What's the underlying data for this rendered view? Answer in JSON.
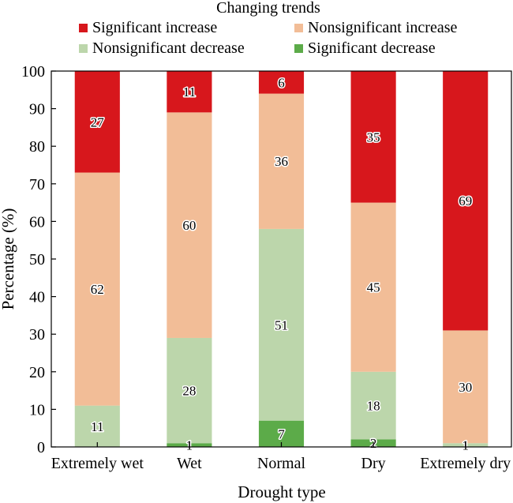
{
  "chart_data": {
    "type": "bar",
    "stacked": true,
    "title": "",
    "xlabel": "Drought type",
    "ylabel": "Percentage (%)",
    "ylim": [
      0,
      100
    ],
    "yticks": [
      0,
      10,
      20,
      30,
      40,
      50,
      60,
      70,
      80,
      90,
      100
    ],
    "categories": [
      "Extremely wet",
      "Wet",
      "Normal",
      "Dry",
      "Extremely dry"
    ],
    "legend": {
      "title": "Changing trends",
      "placement": "top"
    },
    "series": [
      {
        "name": "Significant decrease",
        "color": "#5cab49",
        "values": [
          0,
          1,
          7,
          2,
          0
        ],
        "labels": [
          "",
          "1",
          "7",
          "2",
          ""
        ]
      },
      {
        "name": "Nonsignificant decrease",
        "color": "#bcd6ab",
        "values": [
          11,
          28,
          51,
          18,
          1
        ],
        "labels": [
          "11",
          "28",
          "51",
          "18",
          "1"
        ]
      },
      {
        "name": "Nonsignificant increase",
        "color": "#f2bd97",
        "values": [
          62,
          60,
          36,
          45,
          30
        ],
        "labels": [
          "62",
          "60",
          "36",
          "45",
          "30"
        ]
      },
      {
        "name": "Significant increase",
        "color": "#d7171c",
        "values": [
          27,
          11,
          6,
          35,
          69
        ],
        "labels": [
          "27",
          "11",
          "6",
          "35",
          "69"
        ]
      }
    ]
  }
}
